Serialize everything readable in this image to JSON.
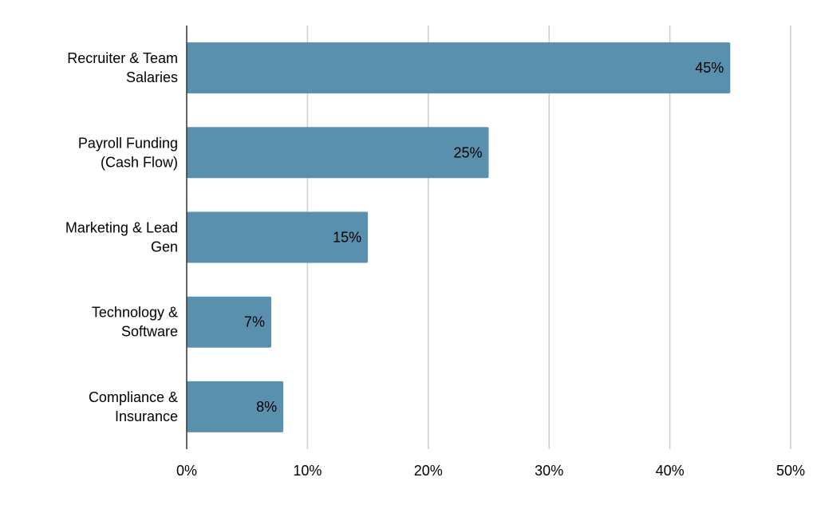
{
  "chart_data": {
    "type": "bar",
    "orientation": "horizontal",
    "title": "",
    "xlabel": "",
    "ylabel": "",
    "categories": [
      [
        "Recruiter & Team",
        "Salaries"
      ],
      [
        "Payroll Funding",
        "(Cash Flow)"
      ],
      [
        "Marketing & Lead",
        "Gen"
      ],
      [
        "Technology &",
        "Software"
      ],
      [
        "Compliance &",
        "Insurance"
      ]
    ],
    "values": [
      45,
      25,
      15,
      7,
      8
    ],
    "value_labels": [
      "45%",
      "25%",
      "15%",
      "7%",
      "8%"
    ],
    "xlim": [
      0,
      50
    ],
    "xticks": [
      0,
      10,
      20,
      30,
      40,
      50
    ],
    "xtick_labels": [
      "0%",
      "10%",
      "20%",
      "30%",
      "40%",
      "50%"
    ],
    "grid": "vertical",
    "legend": "none",
    "bar_color": "#5890ae"
  }
}
